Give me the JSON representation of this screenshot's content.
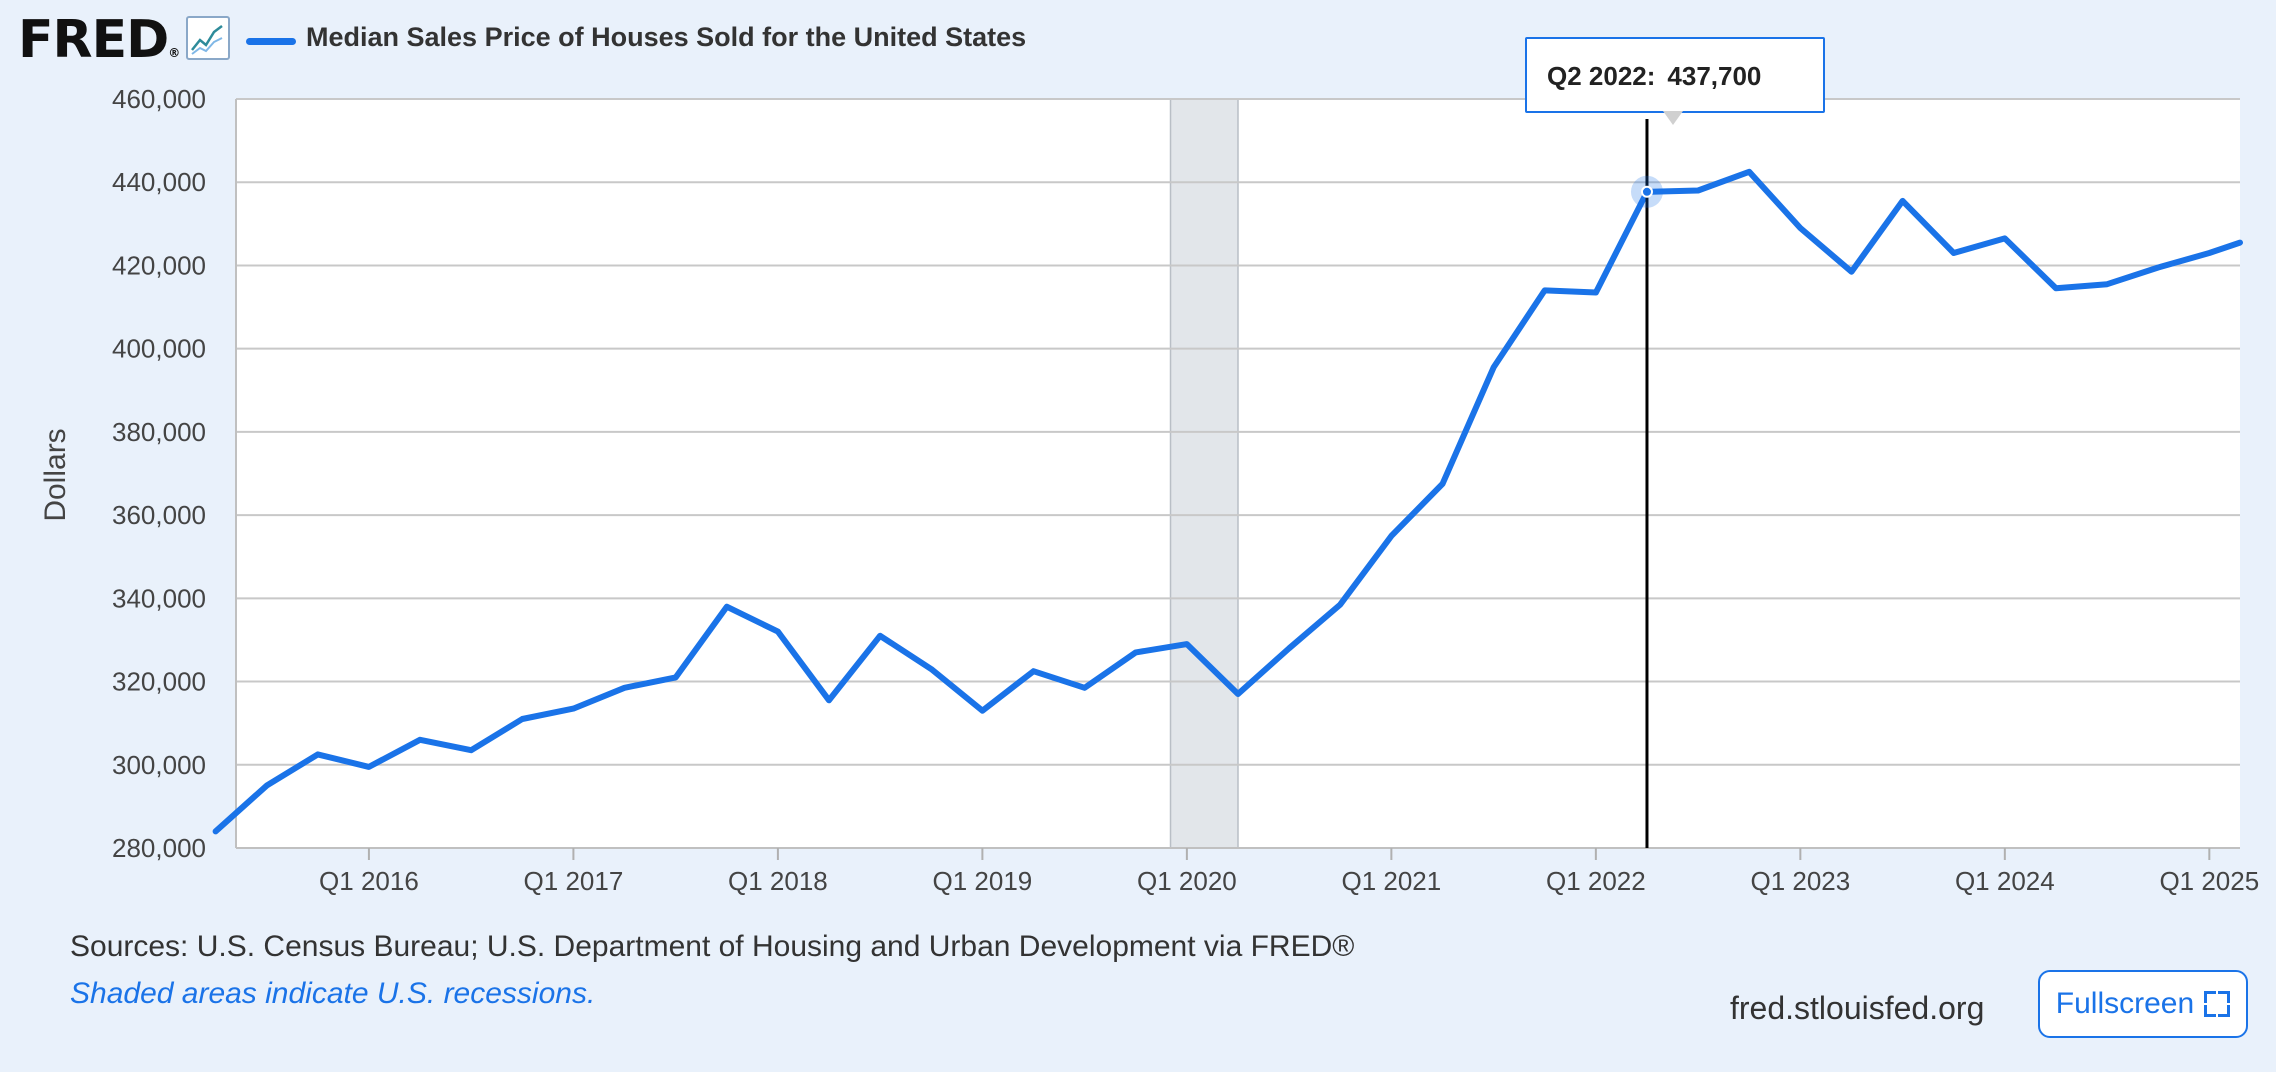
{
  "header": {
    "logo_text": "FRED",
    "logo_mark": "®",
    "chart_icon": "line-chart-icon",
    "series_title": "Median Sales Price of Houses Sold for the United States"
  },
  "tooltip": {
    "date": "Q2 2022:",
    "value": "437,700"
  },
  "footer": {
    "sources": "Sources: U.S. Census Bureau; U.S. Department of Housing and Urban Development via FRED®",
    "recession_note": "Shaded areas indicate U.S. recessions.",
    "site": "fred.stlouisfed.org",
    "fullscreen_label": "Fullscreen"
  },
  "colors": {
    "series": "#1a73e8",
    "recession": "#e2e6ea",
    "grid": "#c8c8c8",
    "background": "#e9f1fb"
  },
  "chart_data": {
    "type": "line",
    "title": "",
    "xlabel": "",
    "ylabel": "Dollars",
    "ylim": [
      280000,
      460000
    ],
    "xlim": [
      2015.35,
      2025.15
    ],
    "yticks": [
      {
        "value": 280000,
        "label": "280,000"
      },
      {
        "value": 300000,
        "label": "300,000"
      },
      {
        "value": 320000,
        "label": "320,000"
      },
      {
        "value": 340000,
        "label": "340,000"
      },
      {
        "value": 360000,
        "label": "360,000"
      },
      {
        "value": 380000,
        "label": "380,000"
      },
      {
        "value": 400000,
        "label": "400,000"
      },
      {
        "value": 420000,
        "label": "420,000"
      },
      {
        "value": 440000,
        "label": "440,000"
      },
      {
        "value": 460000,
        "label": "460,000"
      }
    ],
    "xticks": [
      {
        "value": 2016,
        "label": "Q1 2016"
      },
      {
        "value": 2017,
        "label": "Q1 2017"
      },
      {
        "value": 2018,
        "label": "Q1 2018"
      },
      {
        "value": 2019,
        "label": "Q1 2019"
      },
      {
        "value": 2020,
        "label": "Q1 2020"
      },
      {
        "value": 2021,
        "label": "Q1 2021"
      },
      {
        "value": 2022,
        "label": "Q1 2022"
      },
      {
        "value": 2023,
        "label": "Q1 2023"
      },
      {
        "value": 2024,
        "label": "Q1 2024"
      },
      {
        "value": 2025,
        "label": "Q1 2025"
      }
    ],
    "recessions": [
      {
        "start": 2019.92,
        "end": 2020.25
      }
    ],
    "grid": true,
    "highlight": {
      "x": 2022.25,
      "y": 437700
    },
    "series": [
      {
        "points": [
          {
            "x": 2015.25,
            "y": 284000
          },
          {
            "x": 2015.5,
            "y": 295000
          },
          {
            "x": 2015.75,
            "y": 302500
          },
          {
            "x": 2016.0,
            "y": 299500
          },
          {
            "x": 2016.25,
            "y": 306000
          },
          {
            "x": 2016.5,
            "y": 303500
          },
          {
            "x": 2016.75,
            "y": 311000
          },
          {
            "x": 2017.0,
            "y": 313500
          },
          {
            "x": 2017.25,
            "y": 318500
          },
          {
            "x": 2017.5,
            "y": 321000
          },
          {
            "x": 2017.75,
            "y": 338000
          },
          {
            "x": 2018.0,
            "y": 332000
          },
          {
            "x": 2018.25,
            "y": 315500
          },
          {
            "x": 2018.5,
            "y": 331000
          },
          {
            "x": 2018.75,
            "y": 323000
          },
          {
            "x": 2019.0,
            "y": 313000
          },
          {
            "x": 2019.25,
            "y": 322500
          },
          {
            "x": 2019.5,
            "y": 318500
          },
          {
            "x": 2019.75,
            "y": 327000
          },
          {
            "x": 2020.0,
            "y": 329000
          },
          {
            "x": 2020.25,
            "y": 317000
          },
          {
            "x": 2020.5,
            "y": 328000
          },
          {
            "x": 2020.75,
            "y": 338500
          },
          {
            "x": 2021.0,
            "y": 355000
          },
          {
            "x": 2021.25,
            "y": 367500
          },
          {
            "x": 2021.5,
            "y": 395500
          },
          {
            "x": 2021.75,
            "y": 414000
          },
          {
            "x": 2022.0,
            "y": 413500
          },
          {
            "x": 2022.25,
            "y": 437700
          },
          {
            "x": 2022.5,
            "y": 438000
          },
          {
            "x": 2022.75,
            "y": 442500
          },
          {
            "x": 2023.0,
            "y": 429000
          },
          {
            "x": 2023.25,
            "y": 418500
          },
          {
            "x": 2023.5,
            "y": 435500
          },
          {
            "x": 2023.75,
            "y": 423000
          },
          {
            "x": 2024.0,
            "y": 426500
          },
          {
            "x": 2024.25,
            "y": 414500
          },
          {
            "x": 2024.5,
            "y": 415500
          },
          {
            "x": 2024.75,
            "y": 419500
          },
          {
            "x": 2025.0,
            "y": 423000
          },
          {
            "x": 2025.15,
            "y": 425500
          }
        ]
      }
    ]
  }
}
